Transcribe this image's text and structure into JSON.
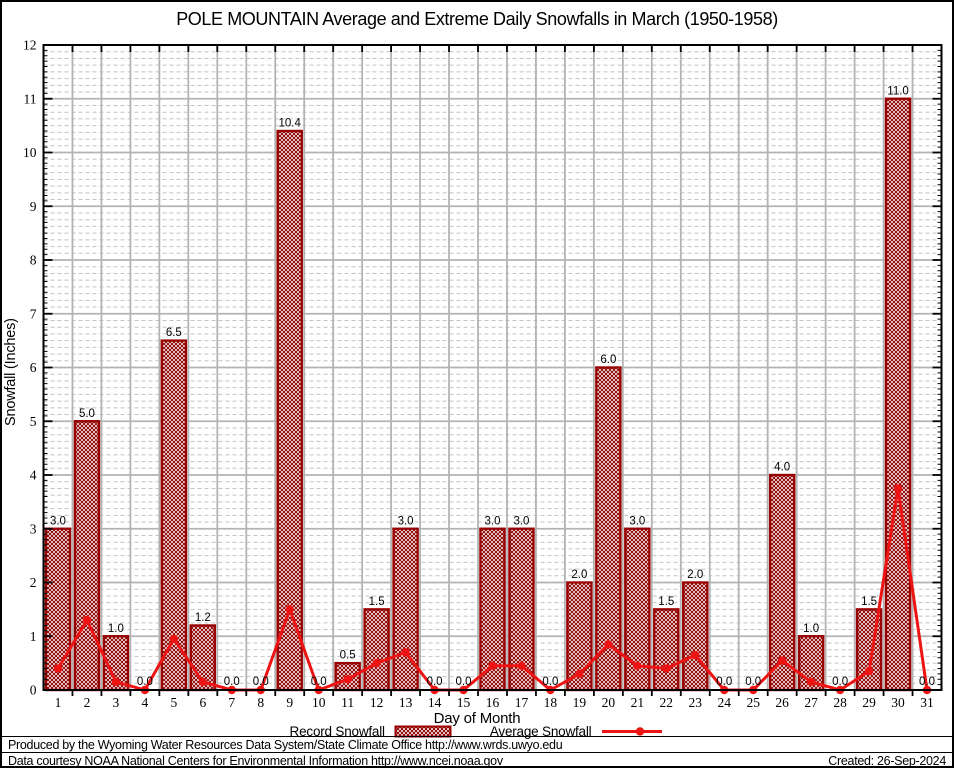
{
  "chart_data": {
    "type": "bar",
    "title": "POLE MOUNTAIN Average and Extreme Daily Snowfalls in March (1950-1958)",
    "xlabel": "Day of Month",
    "ylabel": "Snowfall (Inches)",
    "ylim": [
      0,
      12
    ],
    "ytick_step": 1,
    "grid": {
      "major_x": true,
      "major_y": true,
      "minor_y_step": 0.125,
      "minor_style": "dashed"
    },
    "legend_position": "bottom",
    "categories": [
      "1",
      "2",
      "3",
      "4",
      "5",
      "6",
      "7",
      "8",
      "9",
      "10",
      "11",
      "12",
      "13",
      "14",
      "15",
      "16",
      "17",
      "18",
      "19",
      "20",
      "21",
      "22",
      "23",
      "24",
      "25",
      "26",
      "27",
      "28",
      "29",
      "30",
      "31"
    ],
    "series": [
      {
        "name": "Record Snowfall",
        "type": "bar",
        "hatch": "crosshatch",
        "value_labels": true,
        "values": [
          3.0,
          5.0,
          1.0,
          0.0,
          6.5,
          1.2,
          0.0,
          0.0,
          10.4,
          0.0,
          0.5,
          1.5,
          3.0,
          0.0,
          0.0,
          3.0,
          3.0,
          0.0,
          2.0,
          6.0,
          3.0,
          1.5,
          2.0,
          0.0,
          0.0,
          4.0,
          1.0,
          0.0,
          1.5,
          11.0,
          0.0
        ]
      },
      {
        "name": "Average Snowfall",
        "type": "line",
        "marker": "circle",
        "values": [
          0.4,
          1.3,
          0.15,
          0.0,
          0.95,
          0.15,
          0.0,
          0.0,
          1.5,
          0.0,
          0.2,
          0.5,
          0.7,
          0.0,
          0.0,
          0.45,
          0.45,
          0.0,
          0.3,
          0.85,
          0.45,
          0.4,
          0.65,
          0.0,
          0.0,
          0.55,
          0.15,
          0.0,
          0.35,
          3.75,
          0.0
        ]
      }
    ]
  },
  "footer": {
    "line1": "Produced by the Wyoming Water Resources Data System/State Climate Office http://www.wrds.uwyo.edu",
    "line2": "Data courtesy NOAA National Centers for Environmental Information http://www.ncei.noaa.gov",
    "created": "Created: 26-Sep-2024"
  },
  "colors": {
    "bar_hatch": "#8b0000",
    "bar_border": "#990000",
    "line": "#ee1414",
    "grid_major": "#b3b3b3",
    "grid_minor": "#c2c2c2",
    "axis": "#000000",
    "background": "#ffffff"
  }
}
